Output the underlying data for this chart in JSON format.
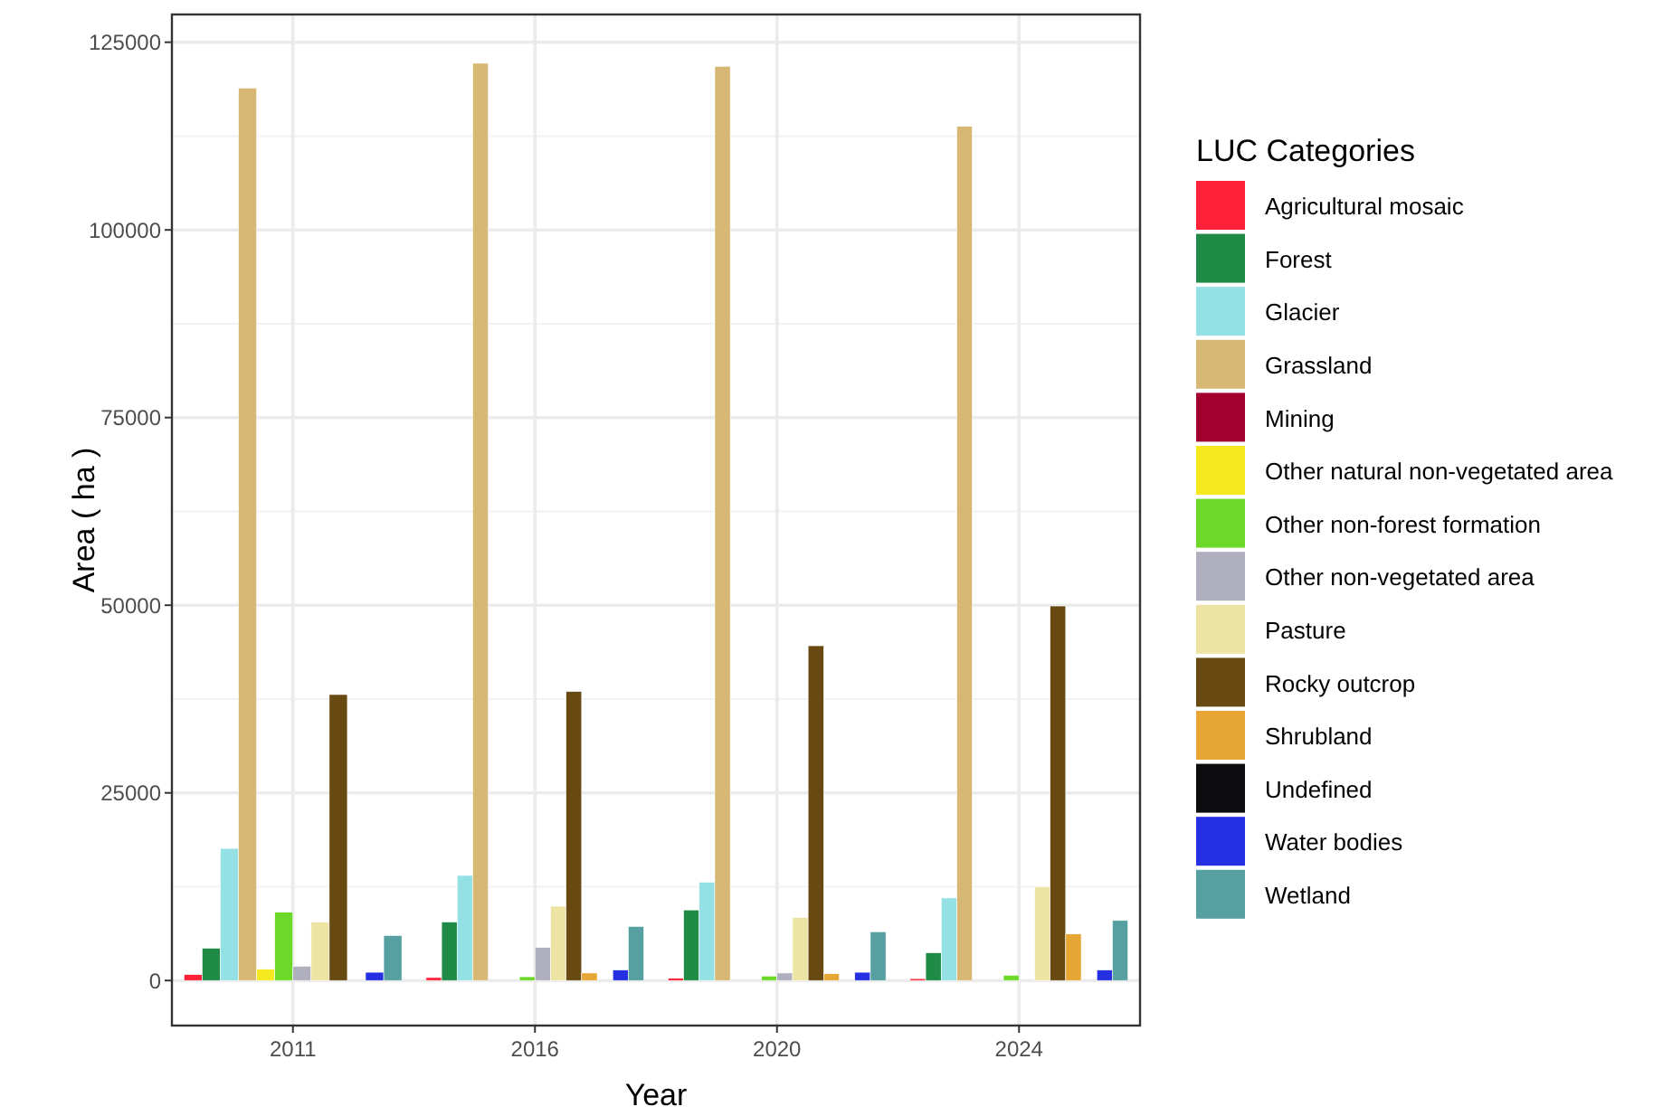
{
  "chart_data": {
    "type": "bar",
    "xlabel": "Year",
    "ylabel": "Area ( ha )",
    "legend_title": "LUC Categories",
    "legend": "right",
    "grid": true,
    "categories": [
      "2011",
      "2016",
      "2020",
      "2024"
    ],
    "ylim": [
      -6000,
      128700
    ],
    "yticks": [
      0,
      25000,
      50000,
      75000,
      100000,
      125000
    ],
    "series": [
      {
        "name": "Agricultural mosaic",
        "color": "#fe2138",
        "values": [
          800,
          400,
          300,
          250
        ]
      },
      {
        "name": "Forest",
        "color": "#1f8b47",
        "values": [
          4300,
          7800,
          9400,
          3700
        ]
      },
      {
        "name": "Glacier",
        "color": "#93e0e5",
        "values": [
          17600,
          14000,
          13100,
          11000
        ]
      },
      {
        "name": "Grassland",
        "color": "#d6b874",
        "values": [
          118900,
          122200,
          121800,
          113800
        ]
      },
      {
        "name": "Mining",
        "color": "#a2002f",
        "values": [
          null,
          0,
          0,
          0
        ]
      },
      {
        "name": "Other natural non-vegetated area",
        "color": "#f6e81e",
        "values": [
          1500,
          0,
          0,
          0
        ]
      },
      {
        "name": "Other non-forest formation",
        "color": "#6cd928",
        "values": [
          9100,
          500,
          600,
          700
        ]
      },
      {
        "name": "Other non-vegetated area",
        "color": "#b0afbd",
        "values": [
          1900,
          4400,
          1000,
          0
        ]
      },
      {
        "name": "Pasture",
        "color": "#ede4a4",
        "values": [
          7800,
          9900,
          8400,
          12500
        ]
      },
      {
        "name": "Rocky outcrop",
        "color": "#684912",
        "values": [
          38100,
          38500,
          44600,
          49900
        ]
      },
      {
        "name": "Shrubland",
        "color": "#e7a534",
        "values": [
          null,
          1000,
          900,
          6200
        ]
      },
      {
        "name": "Undefined",
        "color": "#0c0c0e",
        "values": [
          0,
          0,
          0,
          0
        ]
      },
      {
        "name": "Water bodies",
        "color": "#2430e1",
        "values": [
          1100,
          1400,
          1100,
          1400
        ]
      },
      {
        "name": "Wetland",
        "color": "#57a0a2",
        "values": [
          6000,
          7200,
          6500,
          8000
        ]
      }
    ]
  }
}
